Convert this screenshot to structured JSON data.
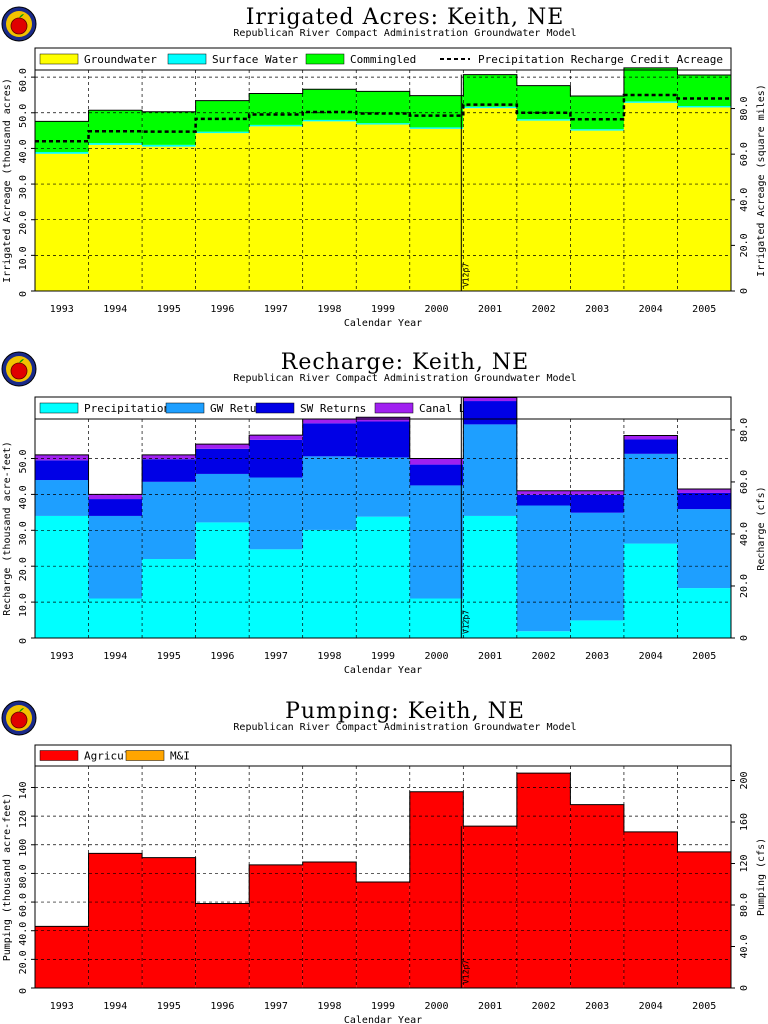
{
  "subtitle": "Republican River Compact Administration Groundwater Model",
  "x_axis_label": "Calendar Year",
  "version_tag": "V12p7",
  "chart_data": [
    {
      "id": "irrigated",
      "type": "area",
      "title": "Irrigated Acres: Keith, NE",
      "ylabel": "Irrigated Acreage (thousand acres)",
      "ylabel_right": "Irrigated Acreage (square miles)",
      "ylim": [
        0,
        62
      ],
      "yticks": [
        0,
        10,
        20,
        30,
        40,
        50,
        60
      ],
      "ytick_labels": [
        "0",
        "10.0",
        "20.0",
        "30.0",
        "40.0",
        "50.0",
        "60.0"
      ],
      "ylim_right": [
        0,
        96.9
      ],
      "yticks_right": [
        0,
        20,
        40,
        60,
        80
      ],
      "ytick_labels_right": [
        "0",
        "20.0",
        "40.0",
        "60.0",
        "80.0"
      ],
      "categories": [
        "1993",
        "1994",
        "1995",
        "1996",
        "1997",
        "1998",
        "1999",
        "2000",
        "2001",
        "2002",
        "2003",
        "2004",
        "2005"
      ],
      "series": [
        {
          "name": "Groundwater",
          "color": "#ffff00",
          "values": [
            38.5,
            41.0,
            40.5,
            44.3,
            46.2,
            47.6,
            46.7,
            45.5,
            51.3,
            47.8,
            45.0,
            52.8,
            51.5
          ]
        },
        {
          "name": "Surface Water",
          "color": "#00ffff",
          "values": [
            0.5,
            0.5,
            0.5,
            0.4,
            0.4,
            0.4,
            0.4,
            0.4,
            0.4,
            0.4,
            0.4,
            0.4,
            0.4
          ]
        },
        {
          "name": "Commingled",
          "color": "#00ff00",
          "values": [
            8.6,
            9.2,
            9.3,
            8.7,
            8.8,
            8.6,
            8.9,
            8.9,
            9.0,
            9.4,
            9.3,
            9.4,
            8.7
          ]
        }
      ],
      "line_series": {
        "name": "Precipitation Recharge Credit Acreage",
        "values": [
          42.0,
          44.8,
          44.7,
          48.3,
          49.5,
          50.2,
          49.8,
          49.2,
          52.3,
          50.0,
          48.2,
          55.0,
          54.0
        ]
      },
      "legend": [
        "Groundwater",
        "Surface Water",
        "Commingled",
        "Precipitation Recharge Credit Acreage"
      ],
      "legend_location": "top",
      "grid": true
    },
    {
      "id": "recharge",
      "type": "area",
      "title": "Recharge: Keith, NE",
      "ylabel": "Recharge (thousand acre-feet)",
      "ylabel_right": "Recharge (cfs)",
      "ylim": [
        0,
        61
      ],
      "yticks": [
        0,
        10,
        20,
        30,
        40,
        50
      ],
      "ytick_labels": [
        "0",
        "10.0",
        "20.0",
        "30.0",
        "40.0",
        "50.0"
      ],
      "ylim_right": [
        0,
        84.2
      ],
      "yticks_right": [
        0,
        20,
        40,
        60,
        80
      ],
      "ytick_labels_right": [
        "0",
        "20.0",
        "40.0",
        "60.0",
        "80.0"
      ],
      "categories": [
        "1993",
        "1994",
        "1995",
        "1996",
        "1997",
        "1998",
        "1999",
        "2000",
        "2001",
        "2002",
        "2003",
        "2004",
        "2005"
      ],
      "series": [
        {
          "name": "Precipitation",
          "color": "#00ffff",
          "values": [
            34.0,
            11.0,
            22.0,
            32.2,
            24.7,
            30.1,
            33.8,
            11.0,
            34.0,
            1.9,
            4.9,
            26.3,
            13.9
          ]
        },
        {
          "name": "GW Returns",
          "color": "#1e9fff",
          "values": [
            10.0,
            23.0,
            21.5,
            13.5,
            20.0,
            20.5,
            16.5,
            31.5,
            25.5,
            35.0,
            30.0,
            25.0,
            22.0
          ]
        },
        {
          "name": "SW Returns",
          "color": "#0000e6",
          "values": [
            5.5,
            4.7,
            6.3,
            7.0,
            10.5,
            9.2,
            10.0,
            5.8,
            6.5,
            3.0,
            5.0,
            4.0,
            4.5
          ]
        },
        {
          "name": "Canal Leakage",
          "color": "#a020f0",
          "values": [
            1.5,
            1.3,
            1.2,
            1.3,
            1.3,
            1.2,
            1.2,
            1.7,
            1.0,
            1.1,
            1.1,
            1.1,
            1.1
          ]
        }
      ],
      "legend": [
        "Precipitation",
        "GW Returns",
        "SW Returns",
        "Canal Leakage"
      ],
      "legend_location": "top",
      "grid": true
    },
    {
      "id": "pumping",
      "type": "area",
      "title": "Pumping: Keith, NE",
      "ylabel": "Pumping (thousand acre-feet)",
      "ylabel_right": "Pumping (cfs)",
      "ylim": [
        0,
        155
      ],
      "yticks": [
        0,
        20,
        40,
        60,
        80,
        100,
        120,
        140
      ],
      "ytick_labels": [
        "0",
        "20.0",
        "40.0",
        "60.0",
        "80.0",
        "100",
        "120",
        "140"
      ],
      "ylim_right": [
        0,
        214
      ],
      "yticks_right": [
        0,
        40,
        80,
        120,
        160,
        200
      ],
      "ytick_labels_right": [
        "0",
        "40.0",
        "80.0",
        "120",
        "160",
        "200"
      ],
      "categories": [
        "1993",
        "1994",
        "1995",
        "1996",
        "1997",
        "1998",
        "1999",
        "2000",
        "2001",
        "2002",
        "2003",
        "2004",
        "2005"
      ],
      "series": [
        {
          "name": "Agricultural",
          "color": "#ff0000",
          "values": [
            43,
            94,
            91,
            59,
            86,
            88,
            74,
            137,
            113,
            150,
            128,
            109,
            95
          ]
        },
        {
          "name": "M&I",
          "color": "#ffa500",
          "values": [
            0,
            0,
            0,
            0,
            0,
            0,
            0,
            0,
            0,
            0,
            0,
            0,
            0
          ]
        }
      ],
      "legend": [
        "Agricultural",
        "M&I"
      ],
      "legend_location": "top",
      "grid": true
    }
  ]
}
